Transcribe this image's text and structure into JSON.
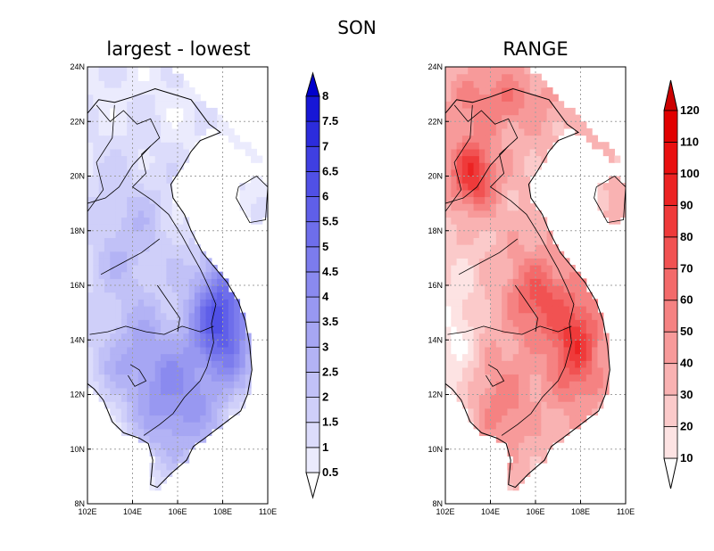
{
  "figure_title": "SON",
  "land_color": "#ffffff",
  "grid_color": "#a0a0a0",
  "chart_data": [
    {
      "type": "heatmap",
      "title": "largest - lowest",
      "xlabel": "",
      "ylabel": "",
      "xlim": [
        102,
        110
      ],
      "ylim": [
        8,
        24
      ],
      "x_ticks": [
        "102E",
        "104E",
        "106E",
        "108E",
        "110E"
      ],
      "y_ticks": [
        "8N",
        "10N",
        "12N",
        "14N",
        "16N",
        "18N",
        "20N",
        "22N",
        "24N"
      ],
      "grid": true,
      "colorbar": {
        "levels": [
          "0.5",
          "1",
          "1.5",
          "2",
          "2.5",
          "3",
          "3.5",
          "4",
          "4.5",
          "5",
          "5.5",
          "6",
          "6.5",
          "7",
          "7.5",
          "8"
        ],
        "colors": [
          "#ffffff",
          "#ebebfd",
          "#dcdcfb",
          "#cfcff9",
          "#c1c1f7",
          "#b3b3f5",
          "#a6a6f3",
          "#9898f1",
          "#8a8aef",
          "#7c7ced",
          "#6e6eeb",
          "#5f5fe9",
          "#5050e6",
          "#3f3fe2",
          "#2c2cdc",
          "#1717d6",
          "#0000cc"
        ],
        "end_arrows": "both"
      }
    },
    {
      "type": "heatmap",
      "title": "RANGE",
      "xlabel": "",
      "ylabel": "",
      "xlim": [
        102,
        110
      ],
      "ylim": [
        8,
        24
      ],
      "x_ticks": [
        "102E",
        "104E",
        "106E",
        "108E",
        "110E"
      ],
      "y_ticks": [
        "8N",
        "10N",
        "12N",
        "14N",
        "16N",
        "18N",
        "20N",
        "22N",
        "24N"
      ],
      "grid": true,
      "colorbar": {
        "levels": [
          "10",
          "20",
          "30",
          "40",
          "50",
          "60",
          "70",
          "80",
          "90",
          "100",
          "110",
          "120"
        ],
        "colors": [
          "#ffffff",
          "#fde3e3",
          "#fbcaca",
          "#f9b2b2",
          "#f79a9a",
          "#f58282",
          "#f36a6a",
          "#f15252",
          "#ef3a3a",
          "#ec2323",
          "#e90f0f",
          "#e10000",
          "#cc0000"
        ],
        "end_arrows": "both"
      }
    }
  ]
}
